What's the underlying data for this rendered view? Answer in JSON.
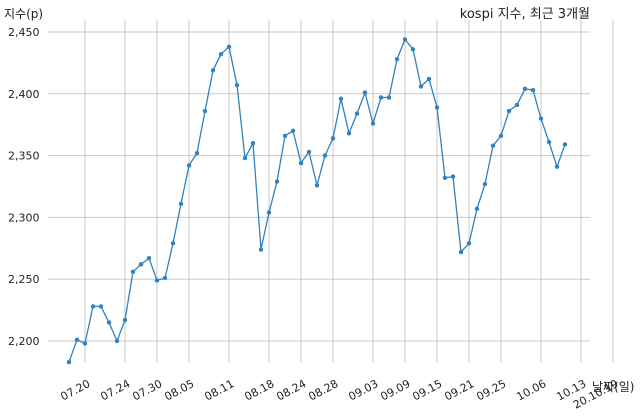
{
  "chart_data": {
    "type": "line",
    "title": "kospi 지수, 최근 3개월",
    "ylabel": "지수(p)",
    "xlabel": "날짜(일)",
    "ylim": [
      2175,
      2455
    ],
    "yticks": [
      2200,
      2250,
      2300,
      2350,
      2400,
      2450
    ],
    "ytick_labels": [
      "2,200",
      "2,250",
      "2,300",
      "2,350",
      "2,400",
      "2,450"
    ],
    "grid": true,
    "line_color": "#3182bd",
    "xtick_labels": [
      "07.20",
      "07.24",
      "07.30",
      "08.05",
      "08.11",
      "08.18",
      "08.24",
      "08.28",
      "09.03",
      "09.09",
      "09.15",
      "09.21",
      "09.25",
      "10.06",
      "10.13",
      "20.10.19"
    ],
    "xtick_point_index": [
      2,
      7,
      11,
      15,
      20,
      25,
      29,
      33,
      38,
      42,
      46,
      50,
      54,
      59,
      64,
      68
    ],
    "values": [
      2183,
      2201,
      2198,
      2228,
      2228,
      2215,
      2200,
      2217,
      2256,
      2262,
      2267,
      2249,
      2251,
      2279,
      2311,
      2342,
      2352,
      2386,
      2419,
      2432,
      2438,
      2407,
      2348,
      2360,
      2274,
      2304,
      2329,
      2366,
      2370,
      2344,
      2353,
      2326,
      2350,
      2364,
      2396,
      2368,
      2384,
      2401,
      2376,
      2397,
      2397,
      2428,
      2444,
      2436,
      2406,
      2412,
      2389,
      2332,
      2333,
      2272,
      2279,
      2307,
      2327,
      2358,
      2366,
      2386,
      2391,
      2404,
      2403,
      2380,
      2361,
      2341,
      2359
    ]
  }
}
